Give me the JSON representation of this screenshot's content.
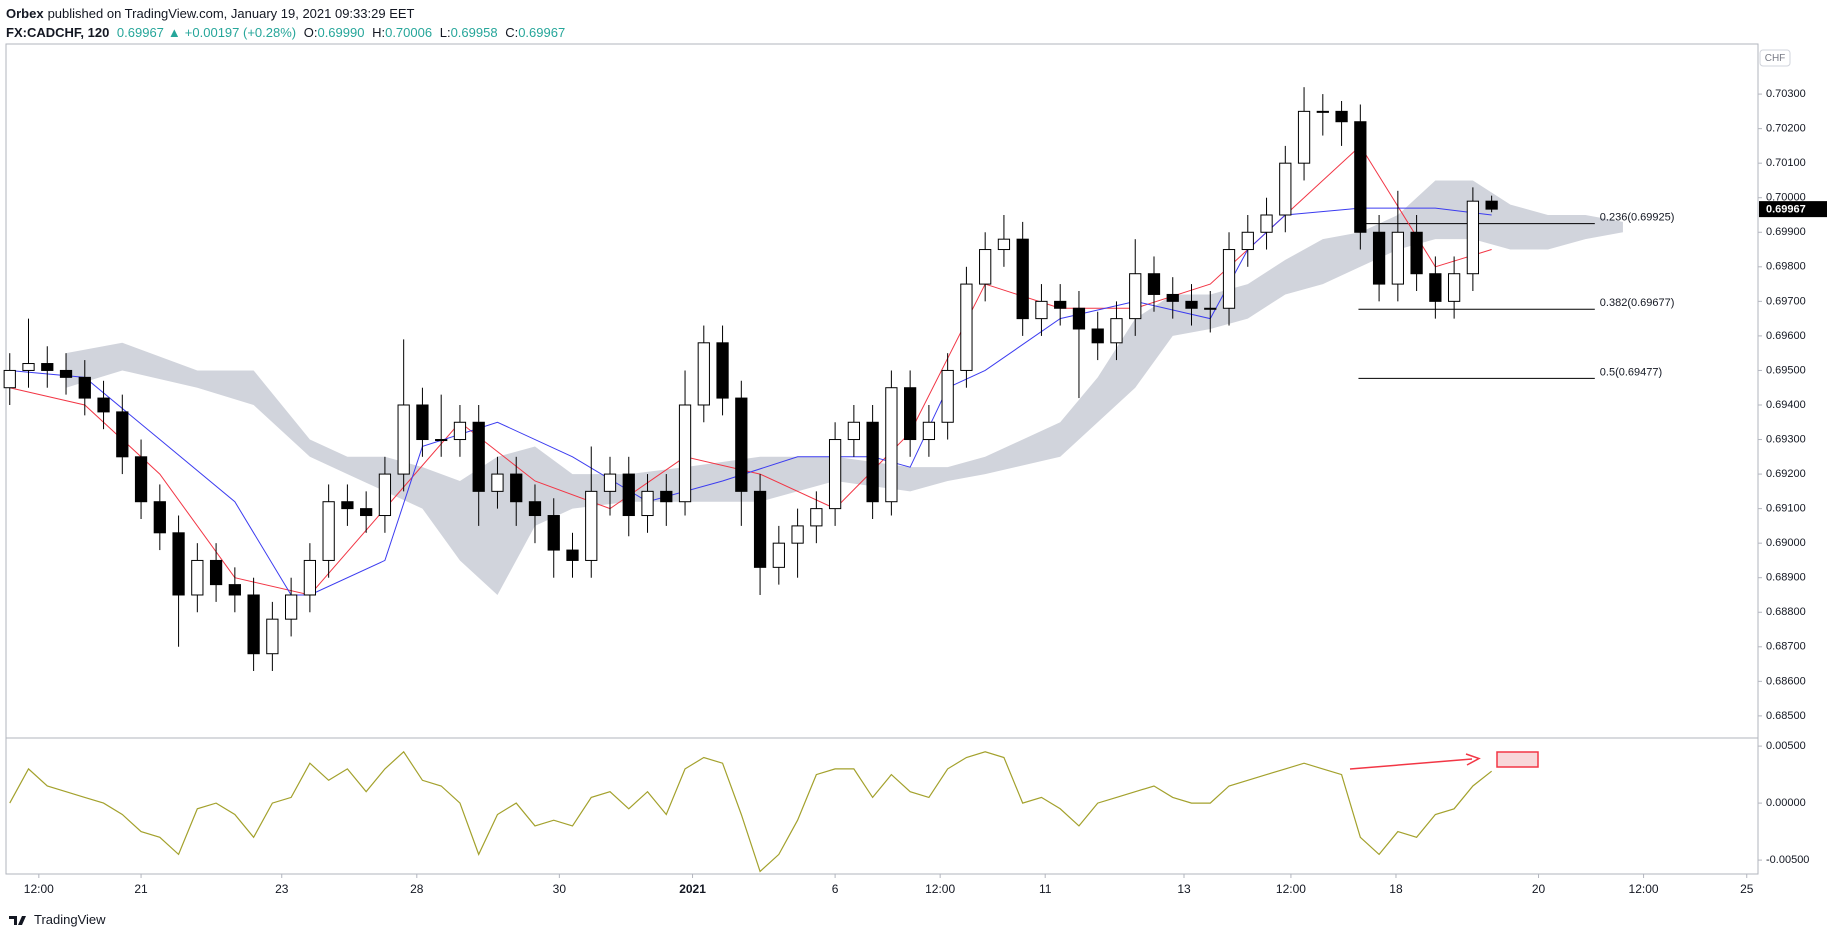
{
  "header": {
    "author": "Orbex",
    "published": "published on TradingView.com, January 19, 2021 09:33:29 EET",
    "symbol": "FX:CADCHF, 120",
    "last": "0.69967",
    "arrow": "▲",
    "change": "+0.00197 (+0.28%)",
    "o_label": "O:",
    "o": "0.69990",
    "h_label": "H:",
    "h": "0.70006",
    "l_label": "L:",
    "l": "0.69958",
    "c_label": "C:",
    "c": "0.69967"
  },
  "footer": {
    "brand": "TradingView"
  },
  "chart_data": [
    {
      "type": "candlestick",
      "open": [
        0.6945,
        0.695,
        0.6952,
        0.695,
        0.6948,
        0.6942,
        0.6938,
        0.6925,
        0.6912,
        0.6903,
        0.6885,
        0.6895,
        0.6888,
        0.6885,
        0.6868,
        0.6878,
        0.6885,
        0.6895,
        0.6912,
        0.691,
        0.6908,
        0.692,
        0.694,
        0.693,
        0.693,
        0.6935,
        0.6915,
        0.692,
        0.6912,
        0.6908,
        0.6898,
        0.6895,
        0.6915,
        0.692,
        0.6908,
        0.6915,
        0.6912,
        0.694,
        0.6958,
        0.6942,
        0.6915,
        0.6893,
        0.69,
        0.6905,
        0.691,
        0.693,
        0.6935,
        0.6912,
        0.6945,
        0.693,
        0.6935,
        0.695,
        0.6975,
        0.6985,
        0.6988,
        0.6965,
        0.697,
        0.6968,
        0.6962,
        0.6958,
        0.6965,
        0.6978,
        0.6972,
        0.697,
        0.6968,
        0.6968,
        0.6985,
        0.699,
        0.6995,
        0.701,
        0.7025,
        0.7025,
        0.7022,
        0.699,
        0.6975,
        0.699,
        0.6978,
        0.697,
        0.6978,
        0.6999
      ],
      "high": [
        0.6955,
        0.6965,
        0.6957,
        0.6955,
        0.6953,
        0.6947,
        0.6943,
        0.693,
        0.6917,
        0.6908,
        0.69,
        0.69,
        0.6893,
        0.689,
        0.6883,
        0.689,
        0.69,
        0.6917,
        0.6917,
        0.6915,
        0.6925,
        0.6959,
        0.6945,
        0.6943,
        0.694,
        0.694,
        0.6925,
        0.6925,
        0.6917,
        0.6913,
        0.6903,
        0.6928,
        0.6925,
        0.6925,
        0.692,
        0.692,
        0.695,
        0.6963,
        0.6963,
        0.6947,
        0.692,
        0.6905,
        0.691,
        0.6915,
        0.6935,
        0.694,
        0.694,
        0.695,
        0.695,
        0.694,
        0.6955,
        0.698,
        0.699,
        0.6995,
        0.6993,
        0.6975,
        0.6975,
        0.6973,
        0.6967,
        0.697,
        0.6988,
        0.6983,
        0.6977,
        0.6975,
        0.6973,
        0.699,
        0.6995,
        0.7,
        0.7015,
        0.7032,
        0.703,
        0.7028,
        0.7027,
        0.6995,
        0.7002,
        0.6995,
        0.6983,
        0.6983,
        0.7003,
        0.70006
      ],
      "low": [
        0.694,
        0.6945,
        0.6945,
        0.6943,
        0.6937,
        0.6933,
        0.692,
        0.6907,
        0.6898,
        0.687,
        0.688,
        0.6883,
        0.688,
        0.6863,
        0.6863,
        0.6873,
        0.688,
        0.689,
        0.6905,
        0.6903,
        0.6903,
        0.6915,
        0.6925,
        0.6925,
        0.6925,
        0.6905,
        0.691,
        0.6905,
        0.69,
        0.689,
        0.689,
        0.689,
        0.6908,
        0.6902,
        0.6903,
        0.6905,
        0.6908,
        0.6935,
        0.6937,
        0.6905,
        0.6885,
        0.6888,
        0.689,
        0.69,
        0.6905,
        0.6925,
        0.6907,
        0.6908,
        0.6925,
        0.6925,
        0.693,
        0.6945,
        0.697,
        0.698,
        0.696,
        0.696,
        0.6963,
        0.6942,
        0.6953,
        0.6953,
        0.696,
        0.6967,
        0.6965,
        0.6963,
        0.6961,
        0.6963,
        0.698,
        0.6985,
        0.699,
        0.7005,
        0.7018,
        0.7015,
        0.6985,
        0.697,
        0.697,
        0.6973,
        0.6965,
        0.6965,
        0.6973,
        0.69958
      ],
      "close": [
        0.695,
        0.6952,
        0.695,
        0.6948,
        0.6942,
        0.6938,
        0.6925,
        0.6912,
        0.6903,
        0.6885,
        0.6895,
        0.6888,
        0.6885,
        0.6868,
        0.6878,
        0.6885,
        0.6895,
        0.6912,
        0.691,
        0.6908,
        0.692,
        0.694,
        0.693,
        0.693,
        0.6935,
        0.6915,
        0.692,
        0.6912,
        0.6908,
        0.6898,
        0.6895,
        0.6915,
        0.692,
        0.6908,
        0.6915,
        0.6912,
        0.694,
        0.6958,
        0.6942,
        0.6915,
        0.6893,
        0.69,
        0.6905,
        0.691,
        0.693,
        0.6935,
        0.6912,
        0.6945,
        0.693,
        0.6935,
        0.695,
        0.6975,
        0.6985,
        0.6988,
        0.6965,
        0.697,
        0.6968,
        0.6962,
        0.6958,
        0.6965,
        0.6978,
        0.6972,
        0.697,
        0.6968,
        0.6968,
        0.6985,
        0.699,
        0.6995,
        0.701,
        0.7025,
        0.7025,
        0.7022,
        0.699,
        0.6975,
        0.699,
        0.6978,
        0.697,
        0.6978,
        0.6999,
        0.69967
      ],
      "up_color": "#ffffff",
      "down_color": "#000000",
      "wick_color": "#000000",
      "xlim": [
        -0.2,
        93.2
      ],
      "xticks": [
        {
          "value": 1.55,
          "label": "12:00"
        },
        {
          "value": 7.0,
          "label": "21"
        },
        {
          "value": 14.5,
          "label": "23"
        },
        {
          "value": 21.7,
          "label": "28"
        },
        {
          "value": 29.3,
          "label": "30"
        },
        {
          "value": 36.4,
          "label": "2021"
        },
        {
          "value": 44.0,
          "label": "6"
        },
        {
          "value": 49.6,
          "label": "12:00"
        },
        {
          "value": 55.2,
          "label": "11"
        },
        {
          "value": 62.6,
          "label": "13"
        },
        {
          "value": 68.3,
          "label": "12:00"
        },
        {
          "value": 73.9,
          "label": "18"
        },
        {
          "value": 81.5,
          "label": "20"
        },
        {
          "value": 87.1,
          "label": "12:00"
        },
        {
          "value": 92.6,
          "label": "25"
        }
      ],
      "ylim": [
        0.68436,
        0.70445
      ],
      "yticks": [
        {
          "value": 0.685,
          "label": "0.68500"
        },
        {
          "value": 0.686,
          "label": "0.68600"
        },
        {
          "value": 0.687,
          "label": "0.68700"
        },
        {
          "value": 0.688,
          "label": "0.68800"
        },
        {
          "value": 0.689,
          "label": "0.68900"
        },
        {
          "value": 0.69,
          "label": "0.69000"
        },
        {
          "value": 0.691,
          "label": "0.69100"
        },
        {
          "value": 0.692,
          "label": "0.69200"
        },
        {
          "value": 0.693,
          "label": "0.69300"
        },
        {
          "value": 0.694,
          "label": "0.69400"
        },
        {
          "value": 0.695,
          "label": "0.69500"
        },
        {
          "value": 0.696,
          "label": "0.69600"
        },
        {
          "value": 0.697,
          "label": "0.69700"
        },
        {
          "value": 0.698,
          "label": "0.69800"
        },
        {
          "value": 0.699,
          "label": "0.69900"
        },
        {
          "value": 0.7,
          "label": "0.70000"
        },
        {
          "value": 0.701,
          "label": "0.70100"
        },
        {
          "value": 0.702,
          "label": "0.70200"
        },
        {
          "value": 0.703,
          "label": "0.70300"
        }
      ],
      "currency": "CHF",
      "last_price": 0.69967,
      "cloud": {
        "color": "#d1d4dc",
        "x": [
          3,
          6,
          10,
          13,
          16,
          18,
          20,
          22,
          24,
          26,
          28,
          30,
          33,
          36,
          40,
          44,
          48,
          50,
          52,
          56,
          58,
          60,
          62,
          64,
          66,
          68,
          70,
          72,
          74,
          76,
          78,
          80,
          82,
          84,
          86
        ],
        "upper": [
          0.6955,
          0.6958,
          0.695,
          0.695,
          0.693,
          0.6925,
          0.6925,
          0.6922,
          0.6918,
          0.6925,
          0.6928,
          0.692,
          0.692,
          0.6922,
          0.6925,
          0.6925,
          0.6922,
          0.6922,
          0.6925,
          0.6935,
          0.6948,
          0.6965,
          0.6972,
          0.6972,
          0.6975,
          0.6982,
          0.6988,
          0.699,
          0.6995,
          0.7005,
          0.7005,
          0.6998,
          0.6995,
          0.6995,
          0.6993
        ],
        "lower": [
          0.6945,
          0.695,
          0.6945,
          0.694,
          0.6925,
          0.692,
          0.6915,
          0.691,
          0.6895,
          0.6885,
          0.6905,
          0.691,
          0.6912,
          0.6912,
          0.6912,
          0.6918,
          0.6915,
          0.6918,
          0.692,
          0.6925,
          0.6935,
          0.6945,
          0.696,
          0.6962,
          0.6965,
          0.6972,
          0.6975,
          0.698,
          0.6985,
          0.6988,
          0.6988,
          0.6985,
          0.6985,
          0.6988,
          0.699
        ]
      },
      "lines": [
        {
          "color": "#f23645",
          "x": [
            0,
            4,
            8,
            12,
            16,
            20,
            24,
            28,
            32,
            36,
            40,
            44,
            48,
            52,
            56,
            60,
            64,
            68,
            72,
            76,
            79
          ],
          "values": [
            0.6945,
            0.694,
            0.692,
            0.689,
            0.6885,
            0.691,
            0.6935,
            0.6918,
            0.691,
            0.6925,
            0.692,
            0.691,
            0.6932,
            0.6975,
            0.6968,
            0.6968,
            0.6975,
            0.6995,
            0.7015,
            0.698,
            0.6985
          ]
        },
        {
          "color": "#3c3cf0",
          "x": [
            0,
            4,
            8,
            12,
            15,
            16,
            20,
            22,
            26,
            30,
            34,
            38,
            42,
            46,
            48,
            50,
            52,
            56,
            60,
            64,
            66,
            68,
            72,
            76,
            79
          ],
          "values": [
            0.695,
            0.6948,
            0.693,
            0.6912,
            0.6885,
            0.6885,
            0.6895,
            0.6928,
            0.6935,
            0.6925,
            0.6912,
            0.6918,
            0.6925,
            0.6925,
            0.6922,
            0.6945,
            0.695,
            0.6965,
            0.697,
            0.6965,
            0.6985,
            0.6995,
            0.6997,
            0.6997,
            0.6995
          ]
        }
      ],
      "fib_levels": [
        {
          "label": "0.236(0.69925)",
          "value": 0.69925,
          "x": [
            71.9,
            84.5
          ]
        },
        {
          "label": "0.382(0.69677)",
          "value": 0.69677,
          "x": [
            71.9,
            84.5
          ]
        },
        {
          "label": "0.5(0.69477)",
          "value": 0.69477,
          "x": [
            71.9,
            84.5
          ]
        }
      ]
    },
    {
      "type": "line",
      "color": "#a3a12c",
      "values": [
        0.0,
        0.003,
        0.0015,
        0.001,
        0.0005,
        0.0,
        -0.001,
        -0.0025,
        -0.003,
        -0.0045,
        -0.0005,
        0.0,
        -0.001,
        -0.003,
        0.0,
        0.0005,
        0.0035,
        0.002,
        0.003,
        0.001,
        0.003,
        0.0045,
        0.002,
        0.0015,
        0.0,
        -0.0045,
        -0.001,
        0.0,
        -0.002,
        -0.0015,
        -0.002,
        0.0005,
        0.001,
        -0.0005,
        0.001,
        -0.001,
        0.003,
        0.004,
        0.0035,
        -0.001,
        -0.006,
        -0.0045,
        -0.0015,
        0.0025,
        0.003,
        0.003,
        0.0005,
        0.0025,
        0.001,
        0.0005,
        0.003,
        0.004,
        0.0045,
        0.004,
        0.0,
        0.0005,
        -0.0005,
        -0.002,
        0.0,
        0.0005,
        0.001,
        0.0015,
        0.0005,
        0.0,
        0.0,
        0.0015,
        0.002,
        0.0025,
        0.003,
        0.0035,
        0.003,
        0.0025,
        -0.003,
        -0.0045,
        -0.0025,
        -0.003,
        -0.001,
        -0.0005,
        0.0015,
        0.0028
      ],
      "ylim": [
        -0.00622,
        0.00571
      ],
      "yticks": [
        {
          "value": -0.005,
          "label": "-0.00500"
        },
        {
          "value": 0,
          "label": "0.00000"
        },
        {
          "value": 0.005,
          "label": "0.00500"
        }
      ]
    }
  ]
}
